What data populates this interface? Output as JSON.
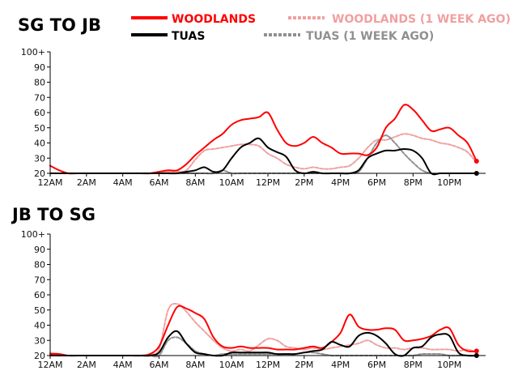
{
  "legend": [
    {
      "label": "WOODLANDS",
      "color": "#ff0000",
      "dash": false
    },
    {
      "label": "WOODLANDS (1 WEEK AGO)",
      "color": "#f0a0a0",
      "dash": true
    },
    {
      "label": "TUAS",
      "color": "#000000",
      "dash": false
    },
    {
      "label": "TUAS (1 WEEK AGO)",
      "color": "#909090",
      "dash": true
    }
  ],
  "chart_data": [
    {
      "type": "line",
      "title": "SG TO JB",
      "x": [
        0,
        0.5,
        1,
        1.5,
        2,
        2.5,
        3,
        3.5,
        4,
        4.5,
        5,
        5.5,
        6,
        6.5,
        7,
        7.5,
        8,
        8.5,
        9,
        9.5,
        10,
        10.5,
        11,
        11.5,
        12,
        12.5,
        13,
        13.5,
        14,
        14.5,
        15,
        15.5,
        16,
        16.5,
        17,
        17.5,
        18,
        18.5,
        19,
        19.5,
        20,
        20.5,
        21,
        21.5,
        22,
        22.5,
        23,
        23.5
      ],
      "xticks": [
        "12AM",
        "2AM",
        "4AM",
        "6AM",
        "8AM",
        "10AM",
        "12PM",
        "2PM",
        "4PM",
        "6PM",
        "8PM",
        "10PM"
      ],
      "yticks": [
        "20",
        "30",
        "40",
        "50",
        "60",
        "70",
        "80",
        "90",
        "100+"
      ],
      "ylim": [
        20,
        100
      ],
      "series": [
        {
          "name": "WOODLANDS",
          "color": "#ff0000",
          "dash": false,
          "width": 2,
          "values": [
            25,
            22,
            20,
            20,
            20,
            20,
            20,
            20,
            20,
            20,
            20,
            20,
            21,
            22,
            22,
            26,
            32,
            37,
            42,
            46,
            52,
            55,
            56,
            57,
            60,
            49,
            40,
            38,
            40,
            44,
            40,
            37,
            33,
            33,
            33,
            32,
            37,
            50,
            56,
            65,
            62,
            55,
            48,
            49,
            50,
            45,
            40,
            28
          ]
        },
        {
          "name": "WOODLANDS (1 WEEK AGO)",
          "color": "#f0a0a0",
          "dash": true,
          "width": 2,
          "values": [
            20,
            20,
            20,
            20,
            20,
            20,
            20,
            20,
            20,
            20,
            20,
            20,
            21,
            21,
            21,
            22,
            29,
            35,
            36,
            37,
            38,
            39,
            39,
            38,
            33,
            30,
            26,
            24,
            23,
            24,
            23,
            23,
            24,
            25,
            30,
            37,
            42,
            42,
            44,
            46,
            45,
            43,
            42,
            40,
            39,
            37,
            34,
            27
          ]
        },
        {
          "name": "TUAS",
          "color": "#000000",
          "dash": false,
          "width": 2,
          "values": [
            20,
            20,
            20,
            20,
            20,
            20,
            20,
            20,
            20,
            20,
            20,
            20,
            20,
            20,
            20,
            21,
            22,
            24,
            21,
            22,
            30,
            37,
            40,
            43,
            37,
            34,
            31,
            22,
            20,
            21,
            20,
            20,
            20,
            20,
            22,
            30,
            33,
            35,
            35,
            36,
            35,
            30,
            20,
            20,
            20,
            20,
            20,
            20
          ]
        },
        {
          "name": "TUAS (1 WEEK AGO)",
          "color": "#909090",
          "dash": true,
          "width": 2,
          "values": [
            20,
            20,
            20,
            20,
            20,
            20,
            20,
            20,
            20,
            20,
            20,
            20,
            20,
            20,
            20,
            20,
            20,
            20,
            20,
            22,
            20,
            20,
            20,
            20,
            20,
            20,
            20,
            20,
            20,
            20,
            20,
            20,
            20,
            20,
            21,
            30,
            40,
            45,
            40,
            33,
            27,
            22,
            20,
            20,
            20,
            20,
            20,
            20
          ]
        }
      ],
      "endpoints": [
        {
          "series": "WOODLANDS",
          "value": 28,
          "color": "#ff0000"
        },
        {
          "series": "TUAS",
          "value": 20,
          "color": "#000000"
        }
      ]
    },
    {
      "type": "line",
      "title": "JB TO SG",
      "x": [
        0,
        0.5,
        1,
        1.5,
        2,
        2.5,
        3,
        3.5,
        4,
        4.5,
        5,
        5.5,
        6,
        6.5,
        7,
        7.5,
        8,
        8.5,
        9,
        9.5,
        10,
        10.5,
        11,
        11.5,
        12,
        12.5,
        13,
        13.5,
        14,
        14.5,
        15,
        15.5,
        16,
        16.5,
        17,
        17.5,
        18,
        18.5,
        19,
        19.5,
        20,
        20.5,
        21,
        21.5,
        22,
        22.5,
        23,
        23.5
      ],
      "xticks": [
        "12AM",
        "2AM",
        "4AM",
        "6AM",
        "8AM",
        "10AM",
        "12PM",
        "2PM",
        "4PM",
        "6PM",
        "8PM",
        "10PM"
      ],
      "yticks": [
        "20",
        "30",
        "40",
        "50",
        "60",
        "70",
        "80",
        "90",
        "100+"
      ],
      "ylim": [
        20,
        100
      ],
      "series": [
        {
          "name": "WOODLANDS",
          "color": "#ff0000",
          "dash": false,
          "width": 2,
          "values": [
            21,
            21,
            20,
            20,
            20,
            20,
            20,
            20,
            20,
            20,
            20,
            21,
            26,
            40,
            52,
            51,
            48,
            44,
            32,
            26,
            25,
            26,
            25,
            25,
            25,
            24,
            24,
            24,
            25,
            26,
            25,
            29,
            35,
            47,
            39,
            37,
            37,
            38,
            37,
            30,
            30,
            31,
            33,
            37,
            38,
            27,
            23,
            23
          ]
        },
        {
          "name": "WOODLANDS (1 WEEK AGO)",
          "color": "#f0a0a0",
          "dash": true,
          "width": 2,
          "values": [
            22,
            21,
            20,
            20,
            20,
            20,
            20,
            20,
            20,
            20,
            20,
            21,
            24,
            50,
            54,
            49,
            42,
            36,
            30,
            25,
            23,
            24,
            23,
            27,
            31,
            30,
            26,
            25,
            24,
            25,
            24,
            25,
            26,
            27,
            28,
            30,
            27,
            25,
            25,
            24,
            25,
            25,
            24,
            24,
            24,
            23,
            24,
            22
          ]
        },
        {
          "name": "TUAS",
          "color": "#000000",
          "dash": false,
          "width": 2,
          "values": [
            20,
            20,
            20,
            20,
            20,
            20,
            20,
            20,
            20,
            20,
            20,
            20,
            22,
            32,
            36,
            28,
            22,
            21,
            20,
            20,
            22,
            22,
            22,
            22,
            22,
            21,
            21,
            21,
            22,
            23,
            24,
            29,
            27,
            26,
            33,
            35,
            33,
            28,
            21,
            20,
            25,
            26,
            32,
            34,
            33,
            22,
            20,
            20
          ]
        },
        {
          "name": "TUAS (1 WEEK AGO)",
          "color": "#909090",
          "dash": true,
          "width": 2,
          "values": [
            20,
            20,
            20,
            20,
            20,
            20,
            20,
            20,
            20,
            20,
            20,
            20,
            20,
            30,
            32,
            28,
            23,
            21,
            20,
            21,
            21,
            21,
            21,
            21,
            21,
            21,
            21,
            21,
            22,
            22,
            21,
            20,
            20,
            20,
            20,
            20,
            20,
            20,
            20,
            20,
            20,
            21,
            21,
            21,
            20,
            20,
            20,
            20
          ]
        }
      ],
      "endpoints": [
        {
          "series": "WOODLANDS",
          "value": 23,
          "color": "#ff0000"
        },
        {
          "series": "TUAS",
          "value": 20,
          "color": "#000000"
        }
      ]
    }
  ]
}
